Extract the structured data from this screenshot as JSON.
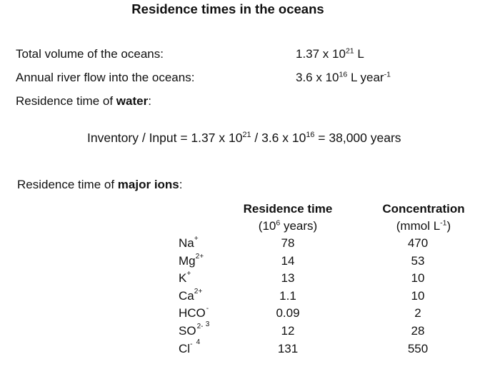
{
  "title": "Residence times in the oceans",
  "facts": {
    "total_volume_label": "Total volume of the oceans:",
    "total_volume_mantissa": "1.37 x 10",
    "total_volume_exp": "21",
    "total_volume_unit": " L",
    "river_flow_label": "Annual river flow into the oceans:",
    "river_flow_mantissa": "3.6 x 10",
    "river_flow_exp": "16",
    "river_flow_unit": " L year",
    "river_flow_unit_exp": "-1",
    "residence_water_prefix": "Residence time of ",
    "residence_water_bold": "water",
    "residence_water_suffix": ":"
  },
  "formula": {
    "part1": "Inventory / Input = 1.37 x 10",
    "exp1": "21",
    "part2": " / 3.6 x 10",
    "exp2": "16",
    "part3": " = 38,000 years"
  },
  "ions_heading": {
    "prefix": "Residence time of ",
    "bold": "major ions",
    "suffix": ":"
  },
  "table": {
    "col1_title": "Residence time",
    "col1_unit_pre": "(10",
    "col1_unit_exp": "6",
    "col1_unit_post": " years)",
    "col2_title": "Concentration",
    "col2_unit_pre": "(mmol L",
    "col2_unit_exp": "-1",
    "col2_unit_post": ")",
    "rows": [
      {
        "ion": "Na",
        "charge": "+",
        "residence": "78",
        "concentration": "470"
      },
      {
        "ion": "Mg",
        "charge": "2+",
        "residence": "14",
        "concentration": "53"
      },
      {
        "ion": "K",
        "charge": "+",
        "residence": "13",
        "concentration": "10"
      },
      {
        "ion": "Ca",
        "charge": "2+",
        "residence": "1.1",
        "concentration": "10"
      },
      {
        "ion": "HCO",
        "sub": "3",
        "charge": "-",
        "residence": "0.09",
        "concentration": "2"
      },
      {
        "ion": "SO",
        "sub": "4",
        "charge": "2-",
        "residence": "12",
        "concentration": "28"
      },
      {
        "ion": "Cl",
        "charge": "-",
        "residence": "131",
        "concentration": "550"
      }
    ]
  }
}
